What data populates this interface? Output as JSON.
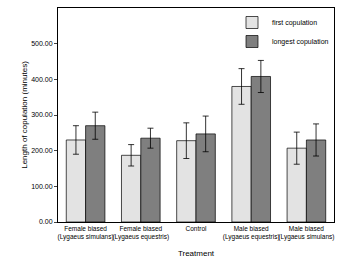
{
  "chart_data": {
    "type": "bar",
    "x_label": "Treatment",
    "y_label": "Length of copulation (minutes)",
    "categories": [
      "Female biased (Lygaeus simulans)",
      "Female biased (Lygaeus equestris)",
      "Control",
      "Male biased (Lygaeus equestris)",
      "Male biased (Lygaeus simulans)"
    ],
    "series": [
      {
        "name": "first copulation",
        "color": "#e3e3e3",
        "values": [
          230,
          187,
          228,
          380,
          207
        ],
        "errors": [
          40,
          30,
          50,
          50,
          45
        ]
      },
      {
        "name": "longest copulation",
        "color": "#7f7f7f",
        "values": [
          270,
          235,
          247,
          408,
          230
        ],
        "errors": [
          38,
          28,
          50,
          45,
          45
        ]
      }
    ],
    "ylim": [
      0,
      600
    ],
    "yticks": [
      {
        "value": 0,
        "label": "0.00"
      },
      {
        "value": 100,
        "label": "100.00"
      },
      {
        "value": 200,
        "label": "200.00"
      },
      {
        "value": 300,
        "label": "300.00"
      },
      {
        "value": 400,
        "label": "400.00"
      },
      {
        "value": 500,
        "label": "500.00"
      }
    ],
    "grid": false,
    "legend": "top right"
  }
}
